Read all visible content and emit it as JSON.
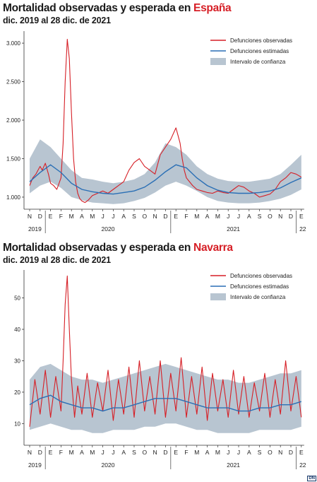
{
  "chart_data": [
    {
      "type": "line",
      "title_prefix": "Mortalidad observadas y esperada en ",
      "title_highlight": "España",
      "subtitle": "dic. 2019 al 28 dic. de 2021",
      "y_ticks": [
        1000,
        1500,
        2000,
        2500,
        3000
      ],
      "y_tick_labels": [
        "1.000",
        "1.500",
        "2.000",
        "2.500",
        "3.000"
      ],
      "ylim": [
        880,
        3120
      ],
      "x_month_labels": [
        "N",
        "D",
        "E",
        "F",
        "M",
        "A",
        "M",
        "J",
        "J",
        "A",
        "S",
        "O",
        "N",
        "D",
        "E",
        "F",
        "M",
        "A",
        "M",
        "J",
        "J",
        "A",
        "S",
        "O",
        "N",
        "D",
        "E"
      ],
      "x_year_labels": [
        "2019",
        "2020",
        "2021",
        "22"
      ],
      "legend": [
        "Defunciones observadas",
        "Defunciones estimadas",
        "Intervalo de confianza"
      ],
      "legend_position": "top-right",
      "colors": {
        "observed": "#d61f26",
        "expected": "#2a6fb5",
        "band": "#b8c5d1"
      },
      "series": [
        {
          "name": "Defunciones observadas",
          "x": [
            0,
            0.3,
            0.6,
            1,
            1.2,
            1.5,
            1.8,
            2,
            2.3,
            2.6,
            3,
            3.2,
            3.4,
            3.6,
            3.8,
            4,
            4.2,
            4.4,
            4.6,
            4.8,
            5,
            5.3,
            5.6,
            6,
            6.5,
            7,
            7.5,
            8,
            8.5,
            9,
            9.5,
            10,
            10.5,
            11,
            11.5,
            12,
            12.5,
            13,
            13.5,
            14,
            14.2,
            14.4,
            14.6,
            14.8,
            15,
            15.3,
            15.6,
            16,
            16.5,
            17,
            17.5,
            18,
            18.5,
            19,
            19.5,
            20,
            20.5,
            21,
            21.5,
            22,
            22.5,
            23,
            23.5,
            24,
            24.5,
            25,
            25.5,
            26
          ],
          "y": [
            1150,
            1250,
            1300,
            1400,
            1350,
            1440,
            1300,
            1180,
            1150,
            1100,
            1250,
            1700,
            2500,
            3050,
            2800,
            2100,
            1500,
            1200,
            1050,
            980,
            950,
            930,
            960,
            1020,
            1050,
            1080,
            1050,
            1100,
            1150,
            1200,
            1350,
            1450,
            1500,
            1400,
            1350,
            1300,
            1550,
            1650,
            1750,
            1900,
            1800,
            1700,
            1500,
            1350,
            1250,
            1200,
            1150,
            1100,
            1080,
            1060,
            1050,
            1080,
            1060,
            1050,
            1100,
            1150,
            1130,
            1080,
            1050,
            1000,
            1020,
            1040,
            1100,
            1200,
            1250,
            1320,
            1300,
            1260
          ]
        },
        {
          "name": "Defunciones estimadas",
          "x": [
            0,
            1,
            2,
            3,
            4,
            5,
            6,
            7,
            8,
            9,
            10,
            11,
            12,
            13,
            14,
            15,
            16,
            17,
            18,
            19,
            20,
            21,
            22,
            23,
            24,
            25,
            26
          ],
          "y": [
            1200,
            1320,
            1420,
            1320,
            1180,
            1100,
            1070,
            1050,
            1040,
            1060,
            1080,
            1130,
            1220,
            1330,
            1420,
            1380,
            1250,
            1150,
            1090,
            1060,
            1050,
            1050,
            1060,
            1080,
            1120,
            1190,
            1250
          ]
        },
        {
          "name": "Intervalo de confianza",
          "x": [
            0,
            1,
            2,
            3,
            4,
            5,
            6,
            7,
            8,
            9,
            10,
            11,
            12,
            13,
            14,
            15,
            16,
            17,
            18,
            19,
            20,
            21,
            22,
            23,
            24,
            25,
            26
          ],
          "upper": [
            1500,
            1750,
            1650,
            1500,
            1350,
            1250,
            1230,
            1200,
            1180,
            1200,
            1230,
            1300,
            1450,
            1700,
            1650,
            1550,
            1400,
            1300,
            1240,
            1210,
            1200,
            1200,
            1220,
            1240,
            1300,
            1420,
            1550
          ],
          "lower": [
            1050,
            1150,
            1200,
            1120,
            1000,
            960,
            930,
            920,
            910,
            920,
            950,
            990,
            1060,
            1150,
            1200,
            1150,
            1080,
            1000,
            950,
            930,
            920,
            920,
            930,
            950,
            980,
            1030,
            1100
          ]
        }
      ]
    },
    {
      "type": "line",
      "title_prefix": "Mortalidad observadas y esperada en ",
      "title_highlight": "Navarra",
      "subtitle": "dic. 2019 al 28 dic. de 2021",
      "y_ticks": [
        10,
        20,
        30,
        40,
        50
      ],
      "y_tick_labels": [
        "10",
        "20",
        "30",
        "40",
        "50"
      ],
      "ylim": [
        4,
        58
      ],
      "x_month_labels": [
        "N",
        "D",
        "E",
        "F",
        "M",
        "A",
        "M",
        "J",
        "J",
        "A",
        "S",
        "O",
        "N",
        "D",
        "E",
        "F",
        "M",
        "A",
        "M",
        "J",
        "J",
        "A",
        "S",
        "O",
        "N",
        "D",
        "E"
      ],
      "x_year_labels": [
        "2019",
        "2020",
        "2021",
        "22"
      ],
      "legend": [
        "Defunciones observadas",
        "Defunciones estimadas",
        "Intervalo de confianza"
      ],
      "legend_position": "top-right",
      "colors": {
        "observed": "#d61f26",
        "expected": "#2a6fb5",
        "band": "#b8c5d1"
      },
      "series": [
        {
          "name": "Defunciones observadas",
          "x": [
            0,
            0.5,
            1,
            1.5,
            2,
            2.5,
            3,
            3.2,
            3.4,
            3.6,
            3.8,
            4,
            4.3,
            4.6,
            5,
            5.5,
            6,
            6.5,
            7,
            7.5,
            8,
            8.5,
            9,
            9.5,
            10,
            10.5,
            11,
            11.5,
            12,
            12.5,
            13,
            13.5,
            14,
            14.5,
            15,
            15.5,
            16,
            16.5,
            17,
            17.5,
            18,
            18.5,
            19,
            19.5,
            20,
            20.5,
            21,
            21.5,
            22,
            22.5,
            23,
            23.5,
            24,
            24.5,
            25,
            25.5,
            26
          ],
          "y": [
            9,
            24,
            13,
            27,
            12,
            25,
            14,
            30,
            48,
            57,
            40,
            24,
            12,
            22,
            13,
            26,
            12,
            23,
            14,
            27,
            11,
            24,
            13,
            28,
            12,
            30,
            14,
            25,
            13,
            30,
            12,
            26,
            14,
            31,
            12,
            25,
            13,
            28,
            11,
            26,
            14,
            24,
            12,
            27,
            13,
            25,
            12,
            23,
            14,
            26,
            12,
            24,
            13,
            30,
            14,
            25,
            12
          ]
        },
        {
          "name": "Defunciones estimadas",
          "x": [
            0,
            1,
            2,
            3,
            4,
            5,
            6,
            7,
            8,
            9,
            10,
            11,
            12,
            13,
            14,
            15,
            16,
            17,
            18,
            19,
            20,
            21,
            22,
            23,
            24,
            25,
            26
          ],
          "y": [
            16,
            18,
            19,
            17,
            16,
            15,
            15,
            14,
            15,
            15,
            16,
            17,
            18,
            18,
            18,
            17,
            16,
            15,
            15,
            15,
            14,
            14,
            15,
            15,
            16,
            16,
            17
          ]
        },
        {
          "name": "Intervalo de confianza",
          "x": [
            0,
            1,
            2,
            3,
            4,
            5,
            6,
            7,
            8,
            9,
            10,
            11,
            12,
            13,
            14,
            15,
            16,
            17,
            18,
            19,
            20,
            21,
            22,
            23,
            24,
            25,
            26
          ],
          "upper": [
            24,
            28,
            29,
            27,
            25,
            24,
            24,
            23,
            24,
            25,
            26,
            27,
            28,
            29,
            28,
            27,
            26,
            25,
            24,
            24,
            23,
            23,
            24,
            25,
            26,
            26,
            27
          ],
          "lower": [
            8,
            9,
            10,
            9,
            8,
            8,
            7,
            7,
            8,
            8,
            8,
            9,
            9,
            10,
            10,
            9,
            8,
            8,
            7,
            7,
            7,
            7,
            8,
            8,
            8,
            8,
            9
          ]
        }
      ]
    }
  ]
}
